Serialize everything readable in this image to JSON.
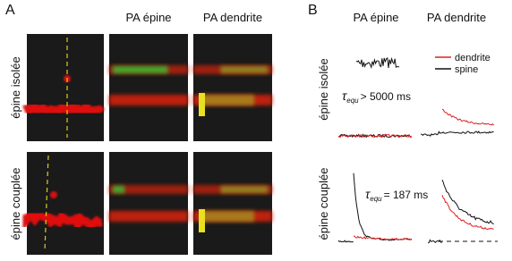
{
  "panel_a": {
    "label": "A",
    "column_headers": [
      "PA épine",
      "PA dendrite"
    ],
    "row_labels": [
      "épine isolée",
      "épine couplée"
    ]
  },
  "panel_b": {
    "label": "B",
    "column_headers": [
      "PA épine",
      "PA dendrite"
    ],
    "row_labels": [
      "épine isolée",
      "épine couplée"
    ],
    "legend": [
      "dendrite",
      "spine"
    ],
    "annotations": [
      {
        "symbol": "τ",
        "subscript": "equ",
        "text": "> 5000 ms"
      },
      {
        "symbol": "τ",
        "subscript": "equ",
        "text": "= 187 ms"
      }
    ]
  }
}
